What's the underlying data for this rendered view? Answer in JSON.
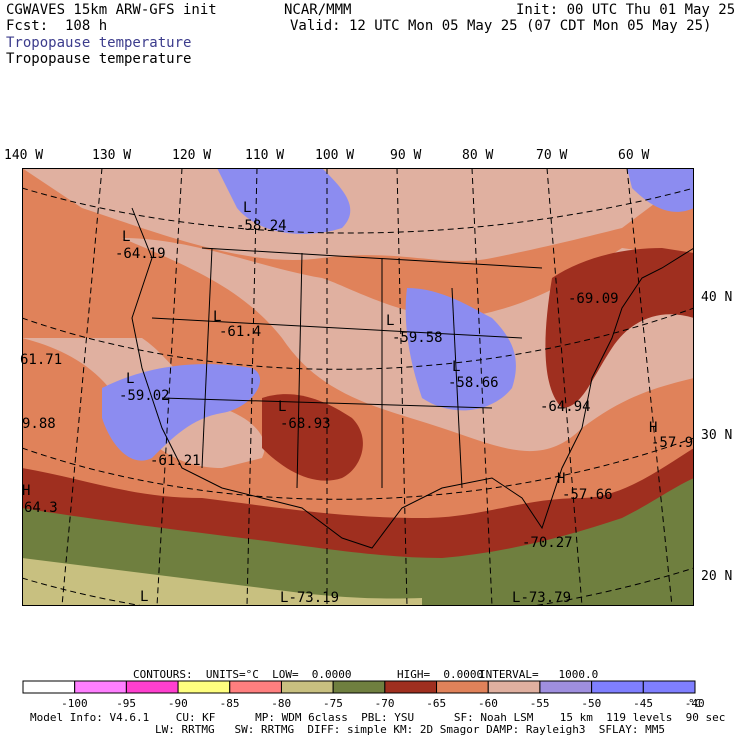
{
  "header": {
    "model": "CGWAVES 15km ARW-GFS init",
    "forecast": "Fcst:  108 h",
    "center": "NCAR/MMM",
    "init": "Init: 00 UTC Thu 01 May 25",
    "valid": "Valid: 12 UTC Mon 05 May 25 (07 CDT Mon 05 May 25)",
    "field_title_1": "Tropopause temperature",
    "field_title_2": "Tropopause temperature"
  },
  "longitude_labels": [
    "140 W",
    "130 W",
    "120 W",
    "110 W",
    "100 W",
    "90 W",
    "80 W",
    "70 W",
    "60 W"
  ],
  "latitude_labels": [
    "40 N",
    "30 N",
    "20 N"
  ],
  "map_annotations": [
    {
      "text": "L",
      "value": "-58.24"
    },
    {
      "text": "L",
      "value": "-64.19"
    },
    {
      "text": "L",
      "value": "-61.4"
    },
    {
      "text": "L",
      "value": "-59.58"
    },
    {
      "text": "",
      "value": "-69.09"
    },
    {
      "text": "",
      "value": "61.71"
    },
    {
      "text": "L",
      "value": "-59.02"
    },
    {
      "text": "L",
      "value": "-58.66"
    },
    {
      "text": "L",
      "value": "-68.93"
    },
    {
      "text": "",
      "value": "-64.94"
    },
    {
      "text": "",
      "value": "9.88"
    },
    {
      "text": "H",
      "value": "-57.9"
    },
    {
      "text": "",
      "value": "-61.21"
    },
    {
      "text": "H",
      "value": "-57.66"
    },
    {
      "text": "H",
      "value": "64.3"
    },
    {
      "text": "",
      "value": "-70.27"
    },
    {
      "text": "L",
      "value": ""
    },
    {
      "text": "L",
      "value": "-73.19"
    },
    {
      "text": "L",
      "value": "-73.79"
    }
  ],
  "contours": {
    "units_label": "CONTOURS:  UNITS=°C  LOW=  0.0000",
    "high_label": "HIGH=  0.0000",
    "interval_label": "INTERVAL=   1000.0"
  },
  "colorbar": {
    "colors": [
      "#ffffff",
      "#ff7fff",
      "#ff3fcf",
      "#ffff7f",
      "#ff7f7f",
      "#c8c080",
      "#6f7f3f",
      "#9f2f1f",
      "#e0825a",
      "#e0b0a0",
      "#9f8fdf",
      "#7f7fff",
      "#7f7fff"
    ],
    "ticks": [
      "-100",
      "-95",
      "-90",
      "-85",
      "-80",
      "-75",
      "-70",
      "-65",
      "-60",
      "-55",
      "-50",
      "-45",
      "-40"
    ],
    "unit": "°C"
  },
  "footer": {
    "line1": "Model Info: V4.6.1    CU: KF      MP: WDM 6class  PBL: YSU      SF: Noah LSM    15 km  119 levels  90 sec",
    "line2": "LW: RRTMG   SW: RRTMG  DIFF: simple KM: 2D Smagor DAMP: Rayleigh3  SFLAY: MM5"
  }
}
